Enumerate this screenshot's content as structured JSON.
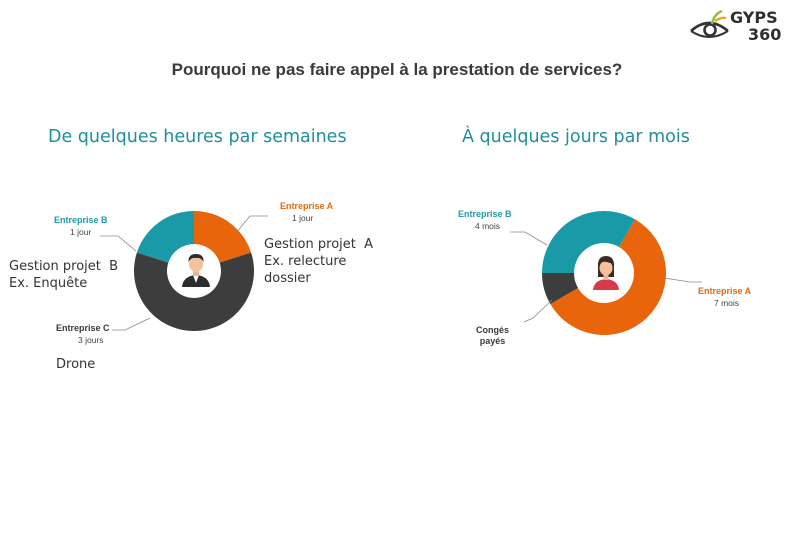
{
  "title": "Pourquoi ne pas faire appel à la prestation de services?",
  "logo": {
    "line1": "GYPS",
    "line2": "360"
  },
  "colors": {
    "teal": "#1a9aa6",
    "orange": "#e8650c",
    "dark": "#3d3d3d",
    "title_teal": "#1f8f9e"
  },
  "chart_data": [
    {
      "type": "pie",
      "title": "De quelques heures par semaines",
      "categories": [
        "Entreprise A",
        "Entreprise B",
        "Entreprise C"
      ],
      "values": [
        1,
        1,
        3
      ],
      "value_labels": [
        "1 jour",
        "1 jour",
        "3 jours"
      ],
      "colors": [
        "#e8650c",
        "#1a9aa6",
        "#3d3d3d"
      ],
      "center_icon": "man-avatar-icon",
      "annotations": {
        "a": [
          "Gestion projet  A",
          "Ex. relecture",
          "dossier"
        ],
        "b": [
          "Gestion projet  B",
          "Ex. Enquête"
        ],
        "c": "Drone"
      }
    },
    {
      "type": "pie",
      "title": "À quelques jours par mois",
      "categories": [
        "Entreprise A",
        "Entreprise B",
        "Congés payés"
      ],
      "values": [
        7,
        4,
        1
      ],
      "value_labels": [
        "7 mois",
        "4 mois",
        ""
      ],
      "colors": [
        "#e8650c",
        "#1a9aa6",
        "#3d3d3d"
      ],
      "center_icon": "woman-avatar-icon",
      "label_lines": {
        "conges": [
          "Congés",
          "payés"
        ]
      }
    }
  ]
}
